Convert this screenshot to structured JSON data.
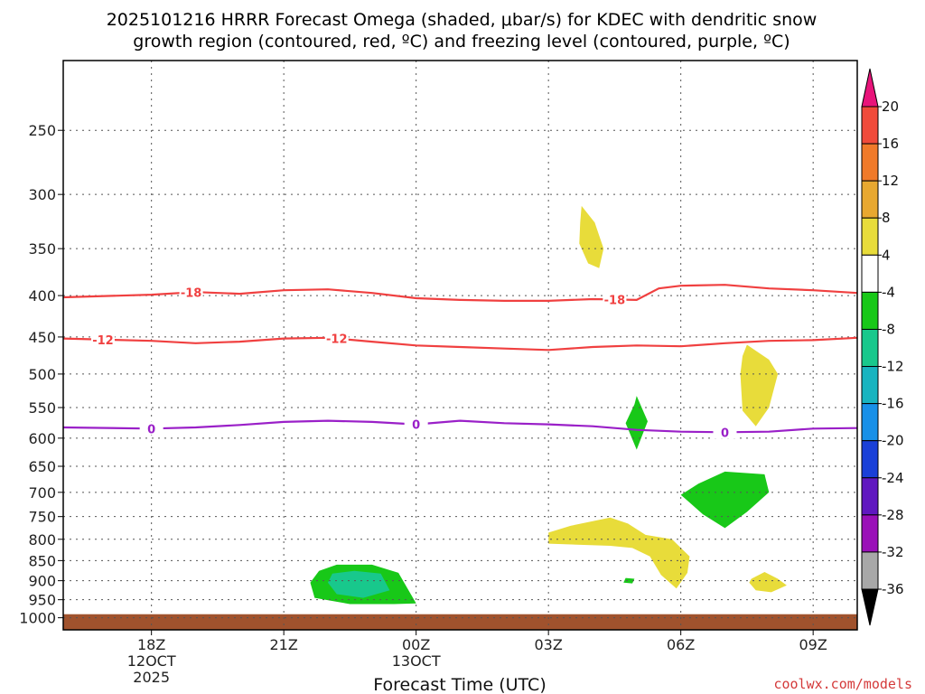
{
  "chart_data": {
    "type": "heatmap",
    "title_lines": [
      "2025101216 HRRR Forecast Omega (shaded, μbar/s) for KDEC with dendritic snow",
      "growth region (contoured, red, ºC) and freezing level (contoured, purple, ºC)"
    ],
    "xlabel": "Forecast Time (UTC)",
    "x_range_hours": [
      -2.0,
      16.0
    ],
    "x_ticks": [
      {
        "hour": 0,
        "lines": [
          "18Z",
          "12OCT",
          "2025"
        ]
      },
      {
        "hour": 3,
        "lines": [
          "21Z"
        ]
      },
      {
        "hour": 6,
        "lines": [
          "00Z",
          "13OCT"
        ]
      },
      {
        "hour": 9,
        "lines": [
          "03Z"
        ]
      },
      {
        "hour": 12,
        "lines": [
          "06Z"
        ]
      },
      {
        "hour": 15,
        "lines": [
          "09Z"
        ]
      }
    ],
    "y_scale": "log",
    "y_range_hpa": [
      1035,
      205
    ],
    "y_ticks": [
      250,
      300,
      350,
      400,
      450,
      500,
      550,
      600,
      650,
      700,
      750,
      800,
      850,
      900,
      950,
      1000
    ],
    "grid": true,
    "ground_level_hpa": 990,
    "colorbar": {
      "unit": "μbar/s",
      "labels": [
        "20",
        "16",
        "12",
        "8",
        "4",
        "-4",
        "-8",
        "-12",
        "-16",
        "-20",
        "-24",
        "-28",
        "-32",
        "-36"
      ],
      "colors_top_to_bottom": [
        "#e8147a",
        "#f04a3a",
        "#f07a2a",
        "#e8a830",
        "#e8dc3a",
        "#ffffff",
        "#18c818",
        "#18c88c",
        "#18b4c0",
        "#1890e8",
        "#1a40d8",
        "#6018c0",
        "#9a10b8",
        "#a8a8a8",
        "#000000"
      ]
    },
    "contours": [
      {
        "name": "dendritic snow growth -18",
        "color": "#f04040",
        "label": "-18",
        "points": [
          [
            -2,
            402
          ],
          [
            0,
            399
          ],
          [
            1,
            396
          ],
          [
            2,
            398
          ],
          [
            3,
            394
          ],
          [
            4,
            393
          ],
          [
            5,
            397
          ],
          [
            6,
            403
          ],
          [
            7,
            405
          ],
          [
            8,
            406
          ],
          [
            9,
            406
          ],
          [
            10,
            404
          ],
          [
            11,
            405
          ],
          [
            11.5,
            392
          ],
          [
            12,
            389
          ],
          [
            13,
            388
          ],
          [
            14,
            392
          ],
          [
            15,
            394
          ],
          [
            16,
            397
          ]
        ],
        "label_hours": [
          0.9,
          10.5
        ]
      },
      {
        "name": "dendritic snow growth -12",
        "color": "#f04040",
        "label": "-12",
        "points": [
          [
            -2,
            452
          ],
          [
            0,
            455
          ],
          [
            1,
            458
          ],
          [
            2,
            456
          ],
          [
            3,
            452
          ],
          [
            4,
            451
          ],
          [
            5,
            456
          ],
          [
            6,
            461
          ],
          [
            7,
            463
          ],
          [
            8,
            465
          ],
          [
            9,
            467
          ],
          [
            10,
            463
          ],
          [
            11,
            461
          ],
          [
            12,
            462
          ],
          [
            13,
            458
          ],
          [
            14,
            455
          ],
          [
            15,
            454
          ],
          [
            16,
            451
          ]
        ],
        "label_hours": [
          -1.1,
          4.2
        ]
      },
      {
        "name": "freezing level 0",
        "color": "#9a20c8",
        "label": "0",
        "points": [
          [
            -2,
            582
          ],
          [
            0,
            584
          ],
          [
            1,
            582
          ],
          [
            2,
            578
          ],
          [
            3,
            573
          ],
          [
            4,
            571
          ],
          [
            5,
            573
          ],
          [
            6,
            577
          ],
          [
            7,
            571
          ],
          [
            8,
            575
          ],
          [
            9,
            577
          ],
          [
            10,
            580
          ],
          [
            11,
            586
          ],
          [
            12,
            589
          ],
          [
            13,
            590
          ],
          [
            14,
            589
          ],
          [
            15,
            584
          ],
          [
            16,
            583
          ]
        ],
        "label_hours": [
          0,
          6,
          13
        ]
      }
    ],
    "shaded_regions": [
      {
        "level": "4 to 8",
        "color": "#e8dc3a",
        "outline": [
          [
            9.75,
            310
          ],
          [
            10.05,
            325
          ],
          [
            10.25,
            350
          ],
          [
            10.15,
            370
          ],
          [
            9.9,
            365
          ],
          [
            9.7,
            345
          ],
          [
            9.72,
            325
          ]
        ]
      },
      {
        "level": "4 to 8",
        "color": "#e8dc3a",
        "outline": [
          [
            13.5,
            460
          ],
          [
            14.0,
            480
          ],
          [
            14.2,
            500
          ],
          [
            14.0,
            550
          ],
          [
            13.7,
            580
          ],
          [
            13.4,
            555
          ],
          [
            13.35,
            500
          ],
          [
            13.4,
            475
          ]
        ]
      },
      {
        "level": "-4 to -8",
        "color": "#18c818",
        "outline": [
          [
            11.0,
            532
          ],
          [
            11.25,
            572
          ],
          [
            11.0,
            620
          ],
          [
            10.75,
            575
          ],
          [
            10.95,
            545
          ]
        ]
      },
      {
        "level": "-4 to -8",
        "color": "#18c818",
        "outline": [
          [
            12.4,
            683
          ],
          [
            13.0,
            660
          ],
          [
            13.9,
            665
          ],
          [
            14.0,
            700
          ],
          [
            13.5,
            740
          ],
          [
            13.0,
            775
          ],
          [
            12.5,
            745
          ],
          [
            12.0,
            705
          ]
        ]
      },
      {
        "level": "4 to 8",
        "color": "#e8dc3a",
        "outline": [
          [
            9.0,
            785
          ],
          [
            9.5,
            770
          ],
          [
            10.4,
            752
          ],
          [
            10.8,
            765
          ],
          [
            11.2,
            790
          ],
          [
            11.8,
            800
          ],
          [
            12.2,
            840
          ],
          [
            12.15,
            880
          ],
          [
            11.9,
            920
          ],
          [
            11.55,
            885
          ],
          [
            11.3,
            840
          ],
          [
            10.9,
            820
          ],
          [
            10.4,
            815
          ],
          [
            9.0,
            810
          ]
        ]
      },
      {
        "level": "4 to 8",
        "color": "#e8dc3a",
        "outline": [
          [
            13.6,
            895
          ],
          [
            13.9,
            878
          ],
          [
            14.2,
            895
          ],
          [
            14.4,
            912
          ],
          [
            14.05,
            930
          ],
          [
            13.7,
            925
          ],
          [
            13.55,
            905
          ]
        ]
      },
      {
        "level": "-4 to -8",
        "color": "#18c818",
        "outline": [
          [
            10.75,
            893
          ],
          [
            10.95,
            895
          ],
          [
            10.9,
            907
          ],
          [
            10.7,
            905
          ]
        ]
      },
      {
        "level": "-4 to -8",
        "color": "#18c818",
        "outline": [
          [
            3.8,
            875
          ],
          [
            4.2,
            860
          ],
          [
            5.0,
            860
          ],
          [
            5.6,
            880
          ],
          [
            6.0,
            960
          ],
          [
            5.5,
            962
          ],
          [
            4.5,
            962
          ],
          [
            3.7,
            945
          ],
          [
            3.6,
            905
          ]
        ]
      },
      {
        "level": "-8 to -12",
        "color": "#18c88c",
        "outline": [
          [
            4.1,
            882
          ],
          [
            4.6,
            875
          ],
          [
            5.2,
            882
          ],
          [
            5.4,
            925
          ],
          [
            4.8,
            945
          ],
          [
            4.2,
            935
          ],
          [
            4.0,
            905
          ]
        ]
      }
    ]
  },
  "credit": "coolwx.com/models"
}
